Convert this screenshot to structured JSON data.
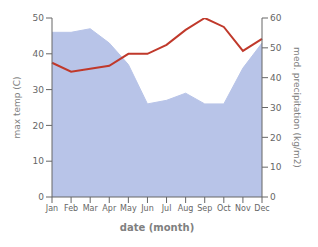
{
  "chart_data": {
    "type": "area",
    "xlabel": "date (month)",
    "ylabel": "max temp (C)",
    "y2label": "med. precipitation (kg/m2)",
    "categories": [
      "Jan",
      "Feb",
      "Mar",
      "Apr",
      "May",
      "Jun",
      "Jul",
      "Aug",
      "Sep",
      "Oct",
      "Nov",
      "Dec"
    ],
    "series": [
      {
        "type": "area",
        "color": "#b8c4e8",
        "values": [
          46,
          46,
          47,
          43,
          37,
          26,
          27,
          29,
          26,
          26,
          36,
          43
        ]
      },
      {
        "type": "line",
        "color": "#c0392b",
        "axis": "y2",
        "values": [
          45,
          42,
          43,
          44,
          48,
          48,
          51,
          56,
          60,
          57,
          49,
          53
        ]
      }
    ],
    "ylim": [
      0,
      50
    ],
    "yticks": [
      0,
      10,
      20,
      30,
      40,
      50
    ],
    "y2lim": [
      0,
      60
    ],
    "y2ticks": [
      0,
      10,
      20,
      30,
      40,
      50,
      60
    ],
    "grid": false
  }
}
